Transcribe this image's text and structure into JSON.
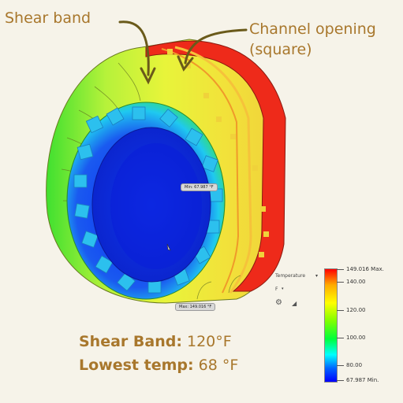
{
  "annotations": {
    "shear_band_label": "Shear band",
    "channel_line1": "Channel opening",
    "channel_line2": "(square)"
  },
  "probes": {
    "min_label": "Min: 67.987 °F",
    "max_label": "Max: 149.016 °F"
  },
  "legend": {
    "title": "Temperature",
    "unit": "F",
    "ticks": {
      "max": "149.016 Max.",
      "t140": "140.00",
      "t120": "120.00",
      "t100": "100.00",
      "t80": "80.00",
      "min": "67.987 Min."
    },
    "colors": [
      "#ff0000",
      "#ffaa00",
      "#ffff00",
      "#7fff00",
      "#00ff3c",
      "#00ffff",
      "#0064ff",
      "#0000ff"
    ]
  },
  "summary": {
    "shear_label": "Shear Band:",
    "shear_value": " 120°F",
    "lowest_label": "Lowest temp:",
    "lowest_value": " 68 °F"
  },
  "icons": [
    "arrow-annotation-icon",
    "gear-icon",
    "ramp-icon",
    "dropdown-caret-icon"
  ]
}
